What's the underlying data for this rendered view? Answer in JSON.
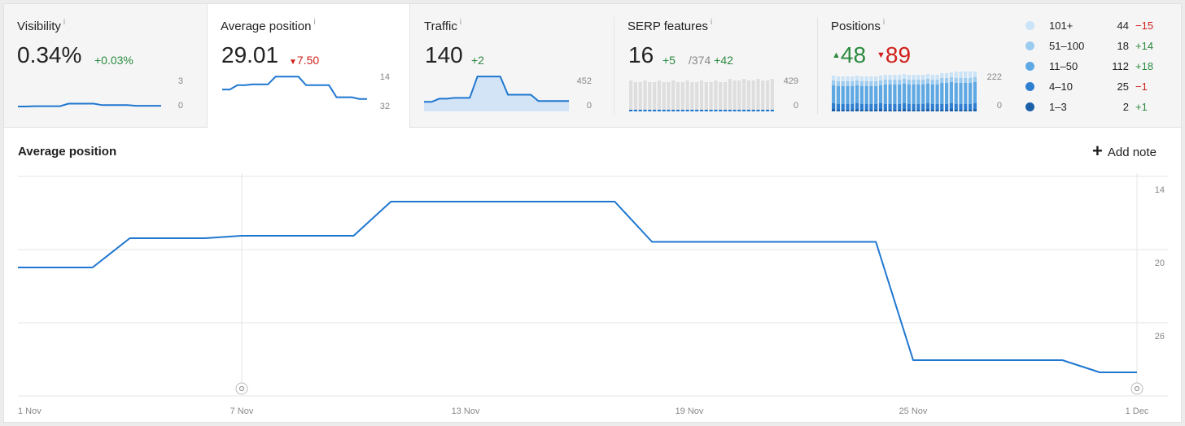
{
  "metrics": {
    "visibility": {
      "title": "Visibility",
      "info": "i",
      "value": "0.34%",
      "delta": "+0.03%",
      "tick_top": "3",
      "tick_bottom": "0",
      "spark": [
        0,
        0,
        0.05,
        0.05,
        0.05,
        0.05,
        0.4,
        0.4,
        0.4,
        0.4,
        0.2,
        0.2,
        0.2,
        0.2,
        0.1,
        0.1,
        0.1,
        0.1
      ]
    },
    "avg_position": {
      "title": "Average position",
      "info": "i",
      "value": "29.01",
      "delta": "7.50",
      "tick_top": "14",
      "tick_bottom": "32",
      "spark": [
        24,
        24,
        21.5,
        21.5,
        21,
        21,
        21,
        16.5,
        16.5,
        16.5,
        16.5,
        21.5,
        21.5,
        21.5,
        21.5,
        28.5,
        28.5,
        28.5,
        29.5,
        29.5
      ]
    },
    "traffic": {
      "title": "Traffic",
      "info": "i",
      "value": "140",
      "delta": "+2",
      "tick_top": "452",
      "tick_bottom": "0",
      "spark": [
        100,
        100,
        140,
        140,
        150,
        150,
        150,
        420,
        420,
        420,
        420,
        190,
        190,
        190,
        190,
        110,
        110,
        110,
        110,
        110
      ]
    },
    "serp": {
      "title": "SERP features",
      "info": "i",
      "value": "16",
      "delta": "+5",
      "total": "/374",
      "total_delta": "+42",
      "tick_top": "429",
      "tick_bottom": "0"
    },
    "positions": {
      "title": "Positions",
      "info": "i",
      "up": "48",
      "down": "89",
      "tick_top": "222",
      "tick_bottom": "0"
    }
  },
  "legend": [
    {
      "label": "101+",
      "count": "44",
      "delta": "−15",
      "color": "#cbe3f7",
      "dir": "down"
    },
    {
      "label": "51–100",
      "count": "18",
      "delta": "+14",
      "color": "#9ccbf0",
      "dir": "up"
    },
    {
      "label": "11–50",
      "count": "112",
      "delta": "+18",
      "color": "#5ea8e4",
      "dir": "up"
    },
    {
      "label": "4–10",
      "count": "25",
      "delta": "−1",
      "color": "#2f7fd1",
      "dir": "down"
    },
    {
      "label": "1–3",
      "count": "2",
      "delta": "+1",
      "color": "#1a5fa8",
      "dir": "up"
    }
  ],
  "chart_header": {
    "title": "Average position",
    "add_note": "Add note"
  },
  "chart_data": {
    "type": "line",
    "title": "Average position",
    "x": [
      "1 Nov",
      "2 Nov",
      "3 Nov",
      "4 Nov",
      "5 Nov",
      "6 Nov",
      "7 Nov",
      "8 Nov",
      "9 Nov",
      "10 Nov",
      "11 Nov",
      "12 Nov",
      "13 Nov",
      "14 Nov",
      "15 Nov",
      "16 Nov",
      "17 Nov",
      "18 Nov",
      "19 Nov",
      "20 Nov",
      "21 Nov",
      "22 Nov",
      "23 Nov",
      "24 Nov",
      "25 Nov",
      "26 Nov",
      "27 Nov",
      "28 Nov",
      "29 Nov",
      "30 Nov",
      "1 Dec"
    ],
    "x_ticks": [
      "1 Nov",
      "7 Nov",
      "13 Nov",
      "19 Nov",
      "25 Nov",
      "1 Dec"
    ],
    "y_ticks": [
      "14",
      "20",
      "26"
    ],
    "ylim": [
      14,
      32
    ],
    "y_inverted": true,
    "series": [
      {
        "values": [
          20.4,
          20.4,
          20.4,
          18.0,
          18.0,
          18.0,
          17.8,
          17.8,
          17.8,
          17.8,
          15.0,
          15.0,
          15.0,
          15.0,
          15.0,
          15.0,
          15.0,
          18.3,
          18.3,
          18.3,
          18.3,
          18.3,
          18.3,
          18.3,
          28.0,
          28.0,
          28.0,
          28.0,
          28.0,
          29.0,
          29.0
        ]
      }
    ],
    "annotation_dates": [
      "7 Nov",
      "1 Dec"
    ],
    "line_color": "#1f77d0",
    "grid": true
  }
}
